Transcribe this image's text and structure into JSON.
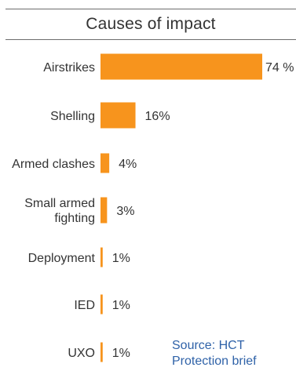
{
  "chart_data": {
    "type": "bar",
    "orientation": "horizontal",
    "title": "Causes of impact",
    "xlabel": "",
    "ylabel": "",
    "xlim": [
      0,
      74
    ],
    "grid": false,
    "legend": "none",
    "categories": [
      [
        "Airstrikes"
      ],
      [
        "Shelling"
      ],
      [
        "Armed clashes"
      ],
      [
        "Small armed",
        "fighting"
      ],
      [
        "Deployment"
      ],
      [
        "IED"
      ],
      [
        "UXO"
      ]
    ],
    "values": [
      74,
      16,
      4,
      3,
      1,
      1,
      1
    ],
    "value_labels": [
      "74 %",
      "16%",
      "4%",
      "3%",
      "1%",
      "1%",
      "1%"
    ],
    "bar_color": "#f7941d"
  },
  "source_lines": [
    "Source: HCT",
    "Protection brief"
  ],
  "colors": {
    "bar": "#f7941d",
    "text": "#333333",
    "rule": "#6d6d6d",
    "source": "#2f62a8"
  }
}
